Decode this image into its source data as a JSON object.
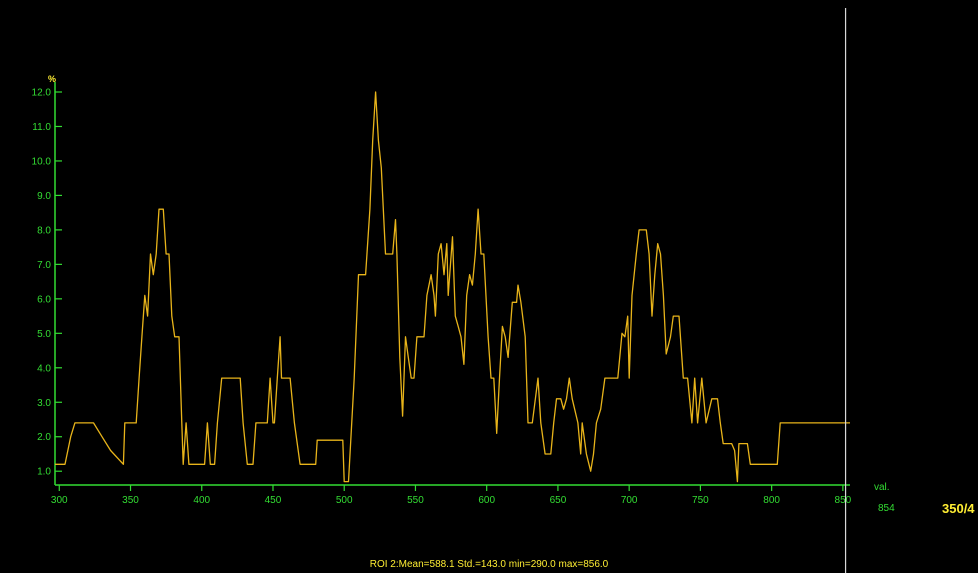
{
  "colors": {
    "background": "#000000",
    "axis": "#33dd33",
    "line": "#e8b41a",
    "cursor": "#d8d8d8",
    "annotation": "#ffee33"
  },
  "side_panel": {
    "val_caption": "val.",
    "val_value": "854",
    "window_level": "350/4"
  },
  "footer": {
    "roi_stats": "ROI 2:Mean=588.1 Std.=143.0 min=290.0 max=856.0"
  },
  "chart_data": {
    "type": "line",
    "title": "",
    "xlabel": "",
    "ylabel": "%",
    "xlim": [
      297,
      855
    ],
    "ylim": [
      0.6,
      12.0
    ],
    "x_ticks": [
      300,
      350,
      400,
      450,
      500,
      550,
      600,
      650,
      700,
      750,
      800,
      850
    ],
    "y_ticks": [
      1.0,
      2.0,
      3.0,
      4.0,
      5.0,
      6.0,
      7.0,
      8.0,
      9.0,
      10.0,
      11.0,
      12.0
    ],
    "x_tick_labels": [
      "300",
      "350",
      "400",
      "450",
      "500",
      "550",
      "600",
      "650",
      "700",
      "750",
      "800",
      "850"
    ],
    "y_tick_labels": [
      "1.0",
      "2.0",
      "3.0",
      "4.0",
      "5.0",
      "6.0",
      "7.0",
      "8.0",
      "9.0",
      "10.0",
      "11.0",
      "12.0"
    ],
    "grid": false,
    "cursor_x": 854,
    "series": [
      {
        "values": [
          [
            297,
            1.2
          ],
          [
            304,
            1.2
          ],
          [
            308,
            2.0
          ],
          [
            311,
            2.4
          ],
          [
            318,
            2.4
          ],
          [
            324,
            2.4
          ],
          [
            330,
            2.0
          ],
          [
            336,
            1.6
          ],
          [
            345,
            1.2
          ],
          [
            346,
            2.4
          ],
          [
            354,
            2.4
          ],
          [
            356,
            3.7
          ],
          [
            358,
            4.9
          ],
          [
            360,
            6.1
          ],
          [
            362,
            5.5
          ],
          [
            364,
            7.3
          ],
          [
            366,
            6.7
          ],
          [
            368,
            7.3
          ],
          [
            370,
            8.6
          ],
          [
            373,
            8.6
          ],
          [
            375,
            7.3
          ],
          [
            377,
            7.3
          ],
          [
            379,
            5.5
          ],
          [
            381,
            4.9
          ],
          [
            384,
            4.9
          ],
          [
            386,
            2.4
          ],
          [
            387,
            1.2
          ],
          [
            389,
            2.4
          ],
          [
            391,
            1.2
          ],
          [
            402,
            1.2
          ],
          [
            404,
            2.4
          ],
          [
            406,
            1.2
          ],
          [
            409,
            1.2
          ],
          [
            411,
            2.4
          ],
          [
            414,
            3.7
          ],
          [
            427,
            3.7
          ],
          [
            429,
            2.4
          ],
          [
            432,
            1.2
          ],
          [
            436,
            1.2
          ],
          [
            438,
            2.4
          ],
          [
            446,
            2.4
          ],
          [
            448,
            3.7
          ],
          [
            450,
            2.4
          ],
          [
            451,
            2.4
          ],
          [
            453,
            3.7
          ],
          [
            455,
            4.9
          ],
          [
            456,
            3.7
          ],
          [
            462,
            3.7
          ],
          [
            465,
            2.4
          ],
          [
            469,
            1.2
          ],
          [
            480,
            1.2
          ],
          [
            481,
            1.9
          ],
          [
            499,
            1.9
          ],
          [
            500,
            0.7
          ],
          [
            503,
            0.7
          ],
          [
            507,
            3.7
          ],
          [
            510,
            6.7
          ],
          [
            515,
            6.7
          ],
          [
            518,
            8.6
          ],
          [
            520,
            10.6
          ],
          [
            522,
            12.0
          ],
          [
            524,
            10.6
          ],
          [
            526,
            9.8
          ],
          [
            529,
            7.3
          ],
          [
            534,
            7.3
          ],
          [
            536,
            8.3
          ],
          [
            537,
            7.3
          ],
          [
            539,
            4.3
          ],
          [
            541,
            2.6
          ],
          [
            543,
            4.9
          ],
          [
            545,
            4.3
          ],
          [
            547,
            3.7
          ],
          [
            549,
            3.7
          ],
          [
            551,
            4.9
          ],
          [
            556,
            4.9
          ],
          [
            558,
            6.1
          ],
          [
            561,
            6.7
          ],
          [
            563,
            6.1
          ],
          [
            564,
            5.5
          ],
          [
            566,
            7.3
          ],
          [
            568,
            7.6
          ],
          [
            570,
            6.7
          ],
          [
            572,
            7.6
          ],
          [
            573,
            6.1
          ],
          [
            576,
            7.8
          ],
          [
            578,
            5.5
          ],
          [
            580,
            5.2
          ],
          [
            582,
            4.9
          ],
          [
            584,
            4.1
          ],
          [
            586,
            6.1
          ],
          [
            588,
            6.7
          ],
          [
            590,
            6.4
          ],
          [
            592,
            7.3
          ],
          [
            594,
            8.6
          ],
          [
            596,
            7.3
          ],
          [
            598,
            7.3
          ],
          [
            601,
            4.9
          ],
          [
            603,
            3.7
          ],
          [
            605,
            3.7
          ],
          [
            607,
            2.1
          ],
          [
            609,
            3.7
          ],
          [
            611,
            5.2
          ],
          [
            613,
            4.9
          ],
          [
            615,
            4.3
          ],
          [
            618,
            5.9
          ],
          [
            621,
            5.9
          ],
          [
            622,
            6.4
          ],
          [
            624,
            5.9
          ],
          [
            627,
            4.9
          ],
          [
            629,
            2.4
          ],
          [
            632,
            2.4
          ],
          [
            636,
            3.7
          ],
          [
            638,
            2.4
          ],
          [
            641,
            1.5
          ],
          [
            645,
            1.5
          ],
          [
            647,
            2.4
          ],
          [
            649,
            3.1
          ],
          [
            652,
            3.1
          ],
          [
            654,
            2.8
          ],
          [
            656,
            3.1
          ],
          [
            658,
            3.7
          ],
          [
            660,
            3.1
          ],
          [
            664,
            2.4
          ],
          [
            666,
            1.5
          ],
          [
            667,
            2.4
          ],
          [
            670,
            1.5
          ],
          [
            673,
            1.0
          ],
          [
            675,
            1.5
          ],
          [
            677,
            2.4
          ],
          [
            680,
            2.8
          ],
          [
            683,
            3.7
          ],
          [
            692,
            3.7
          ],
          [
            695,
            5.0
          ],
          [
            697,
            4.9
          ],
          [
            699,
            5.5
          ],
          [
            700,
            3.7
          ],
          [
            702,
            6.1
          ],
          [
            705,
            7.3
          ],
          [
            707,
            8.0
          ],
          [
            712,
            8.0
          ],
          [
            714,
            7.3
          ],
          [
            716,
            5.5
          ],
          [
            718,
            6.7
          ],
          [
            720,
            7.6
          ],
          [
            722,
            7.3
          ],
          [
            724,
            6.1
          ],
          [
            726,
            4.4
          ],
          [
            729,
            4.9
          ],
          [
            731,
            5.5
          ],
          [
            735,
            5.5
          ],
          [
            738,
            3.7
          ],
          [
            741,
            3.7
          ],
          [
            744,
            2.4
          ],
          [
            746,
            3.7
          ],
          [
            748,
            2.4
          ],
          [
            751,
            3.7
          ],
          [
            754,
            2.4
          ],
          [
            758,
            3.1
          ],
          [
            762,
            3.1
          ],
          [
            764,
            2.4
          ],
          [
            766,
            1.8
          ],
          [
            772,
            1.8
          ],
          [
            774,
            1.6
          ],
          [
            776,
            0.7
          ],
          [
            777,
            1.8
          ],
          [
            783,
            1.8
          ],
          [
            785,
            1.2
          ],
          [
            804,
            1.2
          ],
          [
            806,
            2.4
          ],
          [
            855,
            2.4
          ]
        ]
      }
    ]
  }
}
